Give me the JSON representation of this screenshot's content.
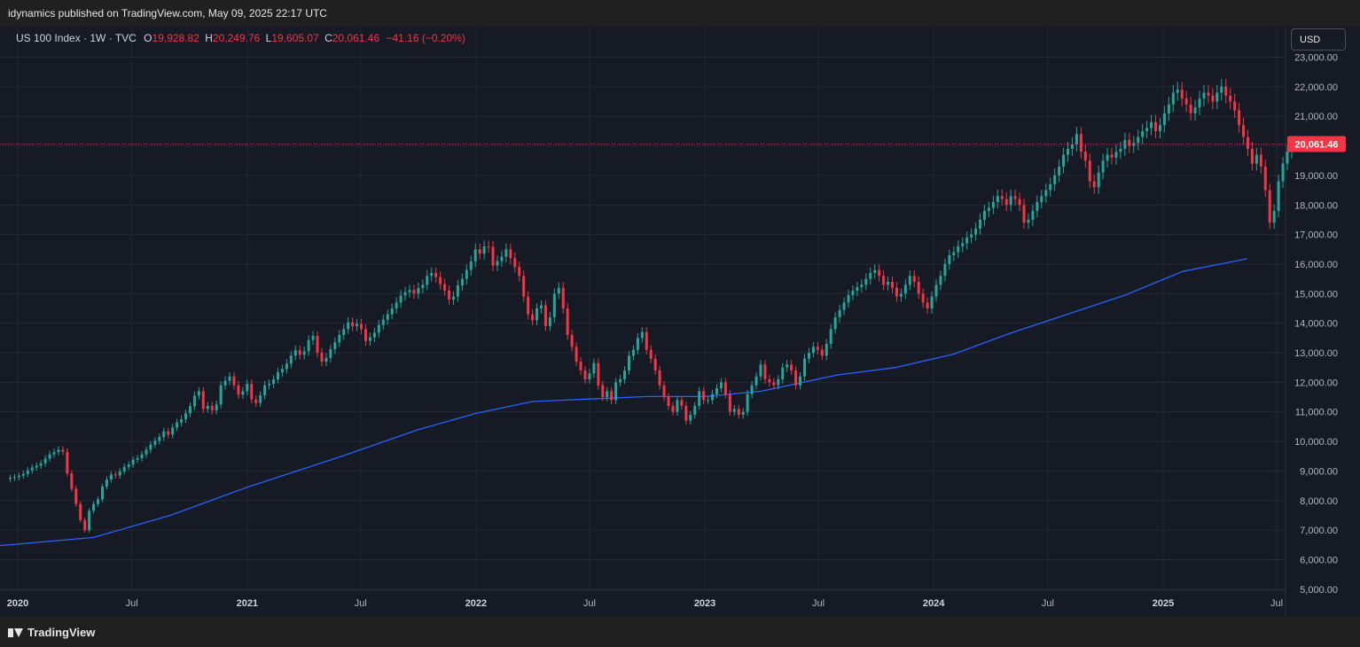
{
  "header": {
    "publisher": "idynamics published on TradingView.com, May 09, 2025 22:17 UTC"
  },
  "legend": {
    "symbol": "US 100 Index · 1W · TVC",
    "open_label": "O",
    "open": "19,928.82",
    "high_label": "H",
    "high": "20,249.76",
    "low_label": "L",
    "low": "19,605.07",
    "close_label": "C",
    "close": "20,061.46",
    "change": "−41.16 (−0.20%)"
  },
  "currency_button": "USD",
  "footer": {
    "brand": "TradingView"
  },
  "colors": {
    "up": "#26a69a",
    "down": "#f23645",
    "ma_line": "#2962ff",
    "background": "#161a25",
    "grid": "#242833",
    "price_tag": "#f23645"
  },
  "chart_data": {
    "type": "candlestick",
    "instrument": "US 100 Index",
    "timeframe": "1W",
    "source": "TVC",
    "last_price": 20061.46,
    "last_price_label": "20,061.46",
    "y_axis_ticks": [
      "5,000.00",
      "6,000.00",
      "7,000.00",
      "8,000.00",
      "9,000.00",
      "10,000.00",
      "11,000.00",
      "12,000.00",
      "13,000.00",
      "14,000.00",
      "15,000.00",
      "16,000.00",
      "17,000.00",
      "18,000.00",
      "19,000.00",
      "20,000.00",
      "21,000.00",
      "22,000.00",
      "23,000.00"
    ],
    "y_tick_values": [
      5000,
      6000,
      7000,
      8000,
      9000,
      10000,
      11000,
      12000,
      13000,
      14000,
      15000,
      16000,
      17000,
      18000,
      19000,
      20000,
      21000,
      22000,
      23000
    ],
    "x_axis_ticks": [
      {
        "label": "2020",
        "date": "2020-01-01",
        "year": true
      },
      {
        "label": "Jul",
        "date": "2020-07-01",
        "year": false
      },
      {
        "label": "2021",
        "date": "2021-01-01",
        "year": true
      },
      {
        "label": "Jul",
        "date": "2021-07-01",
        "year": false
      },
      {
        "label": "2022",
        "date": "2022-01-01",
        "year": true
      },
      {
        "label": "Jul",
        "date": "2022-07-01",
        "year": false
      },
      {
        "label": "2023",
        "date": "2023-01-01",
        "year": true
      },
      {
        "label": "Jul",
        "date": "2023-07-01",
        "year": false
      },
      {
        "label": "2024",
        "date": "2024-01-01",
        "year": true
      },
      {
        "label": "Jul",
        "date": "2024-07-01",
        "year": false
      },
      {
        "label": "2025",
        "date": "2025-01-01",
        "year": true
      },
      {
        "label": "Jul",
        "date": "2025-07-01",
        "year": false
      }
    ],
    "series": [
      {
        "kind": "weekly_closes",
        "start": "2019-12-20",
        "interval_days": 7,
        "closes": [
          8770,
          8795,
          8840,
          8900,
          9020,
          9120,
          9180,
          9260,
          9420,
          9560,
          9640,
          9720,
          9650,
          8920,
          8400,
          7880,
          7340,
          7000,
          7650,
          7880,
          8040,
          8470,
          8710,
          8880,
          8850,
          8990,
          9140,
          9220,
          9380,
          9430,
          9560,
          9720,
          9890,
          10020,
          10150,
          10340,
          10230,
          10470,
          10640,
          10750,
          10950,
          11190,
          11550,
          11700,
          11100,
          11200,
          11050,
          11250,
          11900,
          12050,
          12200,
          11900,
          11580,
          11700,
          11950,
          11420,
          11300,
          11560,
          11900,
          11950,
          12100,
          12340,
          12450,
          12630,
          12900,
          13090,
          12930,
          13050,
          13430,
          13570,
          13000,
          12700,
          12830,
          13120,
          13350,
          13600,
          13800,
          14030,
          13900,
          13980,
          13800,
          13400,
          13520,
          13680,
          13940,
          14120,
          14300,
          14500,
          14700,
          14940,
          15050,
          15120,
          15000,
          15190,
          15300,
          15600,
          15700,
          15560,
          15320,
          15100,
          14800,
          14900,
          15280,
          15500,
          15800,
          16090,
          16500,
          16350,
          16600,
          16580,
          15950,
          16100,
          16250,
          16500,
          16200,
          15900,
          15600,
          14900,
          14300,
          14100,
          14500,
          14600,
          13900,
          14200,
          15000,
          15200,
          14500,
          13600,
          13200,
          12700,
          12400,
          12100,
          12300,
          12650,
          11900,
          11500,
          11700,
          11400,
          12000,
          12100,
          12400,
          12900,
          13100,
          13500,
          13700,
          13100,
          12800,
          12400,
          11900,
          11500,
          11200,
          11000,
          11400,
          11200,
          10700,
          10900,
          11200,
          11700,
          11400,
          11400,
          11600,
          11800,
          12000,
          11600,
          11000,
          11100,
          10900,
          11000,
          11600,
          11900,
          12200,
          12600,
          12100,
          12000,
          11900,
          12100,
          12500,
          12600,
          12400,
          11900,
          12200,
          12800,
          13000,
          13200,
          13100,
          12900,
          13300,
          13800,
          14200,
          14450,
          14700,
          14950,
          15100,
          15220,
          15300,
          15500,
          15700,
          15800,
          15600,
          15300,
          15400,
          15200,
          14900,
          15000,
          15300,
          15600,
          15400,
          15000,
          14700,
          14500,
          14900,
          15300,
          15600,
          16000,
          16300,
          16400,
          16600,
          16700,
          16900,
          17000,
          17200,
          17500,
          17800,
          17900,
          18100,
          18300,
          18200,
          18000,
          18300,
          18200,
          18000,
          17400,
          17500,
          17800,
          18100,
          18300,
          18500,
          18700,
          19000,
          19300,
          19700,
          19900,
          20050,
          20400,
          19800,
          19500,
          18800,
          18600,
          19100,
          19500,
          19700,
          19600,
          19800,
          19900,
          20200,
          20000,
          20100,
          20300,
          20500,
          20600,
          20800,
          20500,
          20700,
          21100,
          21400,
          21800,
          21900,
          21600,
          21400,
          21100,
          21300,
          21600,
          21800,
          21700,
          21500,
          21800,
          22000,
          21700,
          21500,
          21200,
          20700,
          20300,
          19900,
          19400,
          19700,
          19300,
          18500,
          17400,
          17800,
          18800,
          19400,
          19800,
          20100,
          20061.46
        ]
      },
      {
        "kind": "moving_average",
        "name": "",
        "points": [
          {
            "date": "2019-12-01",
            "value": 6470
          },
          {
            "date": "2020-05-01",
            "value": 6750
          },
          {
            "date": "2020-09-01",
            "value": 7500
          },
          {
            "date": "2021-01-01",
            "value": 8450
          },
          {
            "date": "2021-06-01",
            "value": 9500
          },
          {
            "date": "2021-10-01",
            "value": 10400
          },
          {
            "date": "2022-01-01",
            "value": 10950
          },
          {
            "date": "2022-04-01",
            "value": 11350
          },
          {
            "date": "2022-06-15",
            "value": 11420
          },
          {
            "date": "2022-10-01",
            "value": 11520
          },
          {
            "date": "2023-01-01",
            "value": 11520
          },
          {
            "date": "2023-04-01",
            "value": 11700
          },
          {
            "date": "2023-08-01",
            "value": 12250
          },
          {
            "date": "2023-11-01",
            "value": 12500
          },
          {
            "date": "2024-02-01",
            "value": 12950
          },
          {
            "date": "2024-05-01",
            "value": 13650
          },
          {
            "date": "2024-08-01",
            "value": 14300
          },
          {
            "date": "2024-11-01",
            "value": 14950
          },
          {
            "date": "2025-02-01",
            "value": 15750
          },
          {
            "date": "2025-05-15",
            "value": 16180
          }
        ]
      }
    ],
    "ylim": [
      4900,
      23200
    ],
    "grid": true,
    "title": "",
    "xlabel": "",
    "ylabel": ""
  }
}
